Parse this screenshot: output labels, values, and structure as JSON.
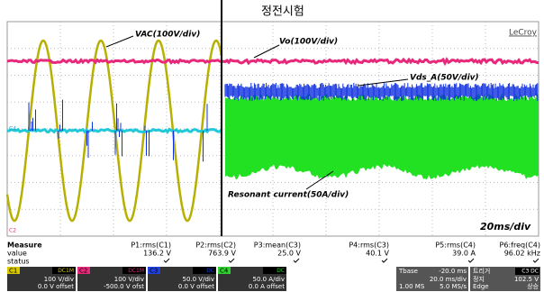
{
  "screen": {
    "title": "정전시험",
    "brand": "LeCroy",
    "annotations": {
      "vac": "VAC(100V/div)",
      "vo": "Vo(100V/div)",
      "vds": "Vds_A(50V/div)",
      "current": "Resonant current(50A/div)"
    },
    "time_per_div": "20ms/div",
    "trace_markers": [
      "C4",
      "C2"
    ]
  },
  "measure": {
    "header": [
      "Measure",
      "P1:rms(C1)",
      "P2:rms(C2)",
      "P3:mean(C3)",
      "P4:rms(C3)",
      "P5:rms(C4)",
      "P6:freq(C4)"
    ],
    "rows": [
      [
        "value",
        "136.2 V",
        "763.9 V",
        "25.0 V",
        "40.1 V",
        "39.0 A",
        "96.02 kHz"
      ],
      [
        "status"
      ]
    ]
  },
  "channels": [
    {
      "name": "C1",
      "coupling": "DC1M",
      "scale": "100 V/div",
      "offset": "0.0 V offset",
      "color": "#d8c800"
    },
    {
      "name": "C2",
      "coupling": "DC1M",
      "scale": "100 V/div",
      "offset": "-500.0 V ofst",
      "color": "#e8287a"
    },
    {
      "name": "C3",
      "coupling": "DC",
      "scale": "50.0 V/div",
      "offset": "0.0 V offset",
      "color": "#2040e0"
    },
    {
      "name": "C4",
      "coupling": "DC",
      "scale": "50.0 A/div",
      "offset": "0.0 A offset",
      "color": "#30d030"
    }
  ],
  "timebase": {
    "label": "Tbase",
    "delay": "-20.0 ms",
    "scale": "20.0 ms/div",
    "samples": "1.00 MS",
    "rate": "5.0 MS/s"
  },
  "trigger": {
    "label": "트리거",
    "source": "C3 DC",
    "mode": "정지",
    "level": "102.5 V",
    "type": "Edge",
    "slope": "상승"
  }
}
